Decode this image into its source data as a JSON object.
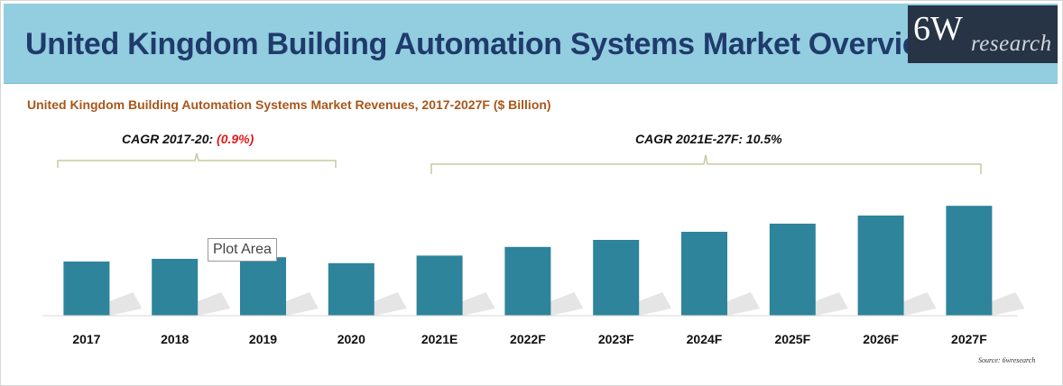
{
  "header": {
    "title": "United Kingdom Building Automation Systems Market Overview",
    "logo": {
      "main": "6W",
      "sub": "research"
    }
  },
  "colors": {
    "header_bg": "#92cde0",
    "title": "#1f3b6b",
    "bar": "#2e849a",
    "subtitle": "#a8571b",
    "cagr_negative": "#e01a1a",
    "bracket": "#c8c8a0"
  },
  "cagr": {
    "first": {
      "label": "CAGR 2017-20: ",
      "value": "(0.9%)"
    },
    "second": {
      "label": "CAGR 2021E-27F: 10.5%"
    }
  },
  "tooltip": "Plot Area",
  "source": "Source: 6wresearch",
  "chart_data": {
    "type": "bar",
    "title": "United Kingdom Building Automation Systems Market Revenues, 2017-2027F ($ Billion)",
    "categories": [
      "2017",
      "2018",
      "2019",
      "2020",
      "2021E",
      "2022F",
      "2023F",
      "2024F",
      "2025F",
      "2026F",
      "2027F"
    ],
    "values": [
      1.0,
      1.05,
      1.08,
      0.97,
      1.11,
      1.27,
      1.4,
      1.55,
      1.7,
      1.85,
      2.03
    ],
    "xlabel": "",
    "ylabel": "",
    "ylim": [
      0,
      2.2
    ],
    "grid": false,
    "legend": "none"
  }
}
